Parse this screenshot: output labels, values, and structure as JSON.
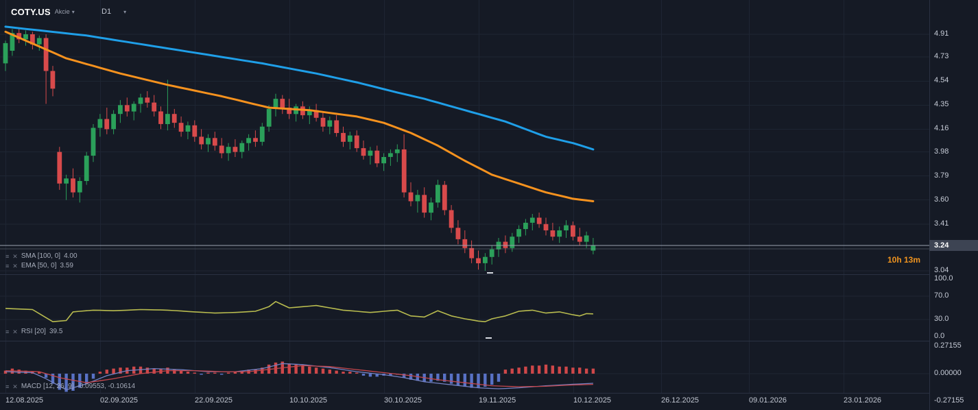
{
  "header": {
    "symbol": "COTY.US",
    "instrument_type": "Akcie",
    "timeframe": "D1"
  },
  "indicators": {
    "sma": {
      "label": "SMA [100, 0]",
      "value": "4.00"
    },
    "ema": {
      "label": "EMA [50, 0]",
      "value": "3.59"
    },
    "rsi": {
      "label": "RSI [20]",
      "value": "39.5"
    },
    "macd": {
      "label": "MACD [12, 26, 9]",
      "value": "-0.09553, -0.10614"
    }
  },
  "countdown": "10h 13m",
  "axis": {
    "price_labels": [
      "4.91",
      "4.73",
      "4.54",
      "4.35",
      "4.16",
      "3.98",
      "3.79",
      "3.60",
      "3.41",
      "3.04"
    ],
    "current_price": "3.24",
    "rsi_labels": [
      "100.0",
      "70.0",
      "30.0",
      "0.0"
    ],
    "macd_labels": [
      "0.27155",
      "0.00000",
      "-0.27155"
    ]
  },
  "dates": [
    "12.08.2025",
    "02.09.2025",
    "22.09.2025",
    "10.10.2025",
    "30.10.2025",
    "19.11.2025",
    "10.12.2025",
    "26.12.2025",
    "09.01.2026",
    "23.01.2026"
  ],
  "colors": {
    "background": "#151a25",
    "grid": "#1e2533",
    "separator": "#2a3142",
    "axis_text": "#c6cbd6",
    "candle_up": "#2ba05a",
    "candle_down": "#d84a4b",
    "sma_line": "#1f9fe8",
    "ema_line": "#f6921e",
    "rsi_line": "#b9bc4f",
    "macd_hist_up": "#d84a4b",
    "macd_hist_down": "#5c76ce",
    "macd_line": "#7482c4",
    "signal_line": "#c4474d",
    "price_line": "#9aa1b0",
    "badge_bg": "#3d4453",
    "countdown": "#f0941f"
  },
  "chart_data": {
    "type": "candlestick",
    "title": "COTY.US D1",
    "price_ylim": [
      3.04,
      4.91
    ],
    "price_line": 3.24,
    "ohlc": [
      [
        4.68,
        4.86,
        4.62,
        4.84
      ],
      [
        4.78,
        4.95,
        4.74,
        4.92
      ],
      [
        4.92,
        4.96,
        4.84,
        4.87
      ],
      [
        4.87,
        4.94,
        4.82,
        4.91
      ],
      [
        4.91,
        4.93,
        4.79,
        4.83
      ],
      [
        4.83,
        4.9,
        4.78,
        4.88
      ],
      [
        4.88,
        4.91,
        4.36,
        4.62
      ],
      [
        4.62,
        4.66,
        4.42,
        4.48
      ],
      [
        3.98,
        4.02,
        3.68,
        3.73
      ],
      [
        3.73,
        3.8,
        3.6,
        3.77
      ],
      [
        3.77,
        3.85,
        3.62,
        3.66
      ],
      [
        3.66,
        3.78,
        3.58,
        3.75
      ],
      [
        3.75,
        3.98,
        3.72,
        3.95
      ],
      [
        3.95,
        4.2,
        3.9,
        4.17
      ],
      [
        4.17,
        4.28,
        4.1,
        4.24
      ],
      [
        4.24,
        4.33,
        4.12,
        4.16
      ],
      [
        4.16,
        4.31,
        4.12,
        4.28
      ],
      [
        4.28,
        4.39,
        4.21,
        4.35
      ],
      [
        4.35,
        4.41,
        4.26,
        4.3
      ],
      [
        4.3,
        4.38,
        4.23,
        4.36
      ],
      [
        4.36,
        4.44,
        4.29,
        4.41
      ],
      [
        4.41,
        4.46,
        4.33,
        4.37
      ],
      [
        4.37,
        4.43,
        4.26,
        4.3
      ],
      [
        4.3,
        4.34,
        4.16,
        4.2
      ],
      [
        4.2,
        4.55,
        4.15,
        4.28
      ],
      [
        4.28,
        4.32,
        4.17,
        4.21
      ],
      [
        4.21,
        4.26,
        4.1,
        4.14
      ],
      [
        4.14,
        4.22,
        4.08,
        4.19
      ],
      [
        4.19,
        4.23,
        4.06,
        4.1
      ],
      [
        4.1,
        4.16,
        4.0,
        4.04
      ],
      [
        4.04,
        4.12,
        3.98,
        4.09
      ],
      [
        4.09,
        4.14,
        3.99,
        4.03
      ],
      [
        4.03,
        4.09,
        3.93,
        3.97
      ],
      [
        3.97,
        4.05,
        3.91,
        4.02
      ],
      [
        4.02,
        4.08,
        3.94,
        3.98
      ],
      [
        3.98,
        4.07,
        3.93,
        4.05
      ],
      [
        4.05,
        4.12,
        3.99,
        4.09
      ],
      [
        4.09,
        4.15,
        4.02,
        4.06
      ],
      [
        4.06,
        4.21,
        4.03,
        4.18
      ],
      [
        4.18,
        4.35,
        4.14,
        4.32
      ],
      [
        4.32,
        4.44,
        4.26,
        4.4
      ],
      [
        4.4,
        4.43,
        4.28,
        4.33
      ],
      [
        4.33,
        4.4,
        4.24,
        4.28
      ],
      [
        4.28,
        4.36,
        4.22,
        4.34
      ],
      [
        4.34,
        4.38,
        4.24,
        4.27
      ],
      [
        4.27,
        4.34,
        4.2,
        4.31
      ],
      [
        4.31,
        4.36,
        4.22,
        4.25
      ],
      [
        4.25,
        4.3,
        4.14,
        4.18
      ],
      [
        4.18,
        4.26,
        4.12,
        4.23
      ],
      [
        4.23,
        4.27,
        4.1,
        4.13
      ],
      [
        4.13,
        4.18,
        4.02,
        4.06
      ],
      [
        4.06,
        4.14,
        4.0,
        4.11
      ],
      [
        4.11,
        4.15,
        3.98,
        4.01
      ],
      [
        4.01,
        4.07,
        3.92,
        3.95
      ],
      [
        3.95,
        4.02,
        3.88,
        3.99
      ],
      [
        3.99,
        4.03,
        3.86,
        3.89
      ],
      [
        3.89,
        3.97,
        3.83,
        3.94
      ],
      [
        3.94,
        4.0,
        3.87,
        3.97
      ],
      [
        3.97,
        4.04,
        3.9,
        4.0
      ],
      [
        4.0,
        4.12,
        3.62,
        3.66
      ],
      [
        3.66,
        3.74,
        3.55,
        3.59
      ],
      [
        3.59,
        3.68,
        3.5,
        3.64
      ],
      [
        3.64,
        3.7,
        3.46,
        3.5
      ],
      [
        3.5,
        3.62,
        3.44,
        3.58
      ],
      [
        3.58,
        3.76,
        3.54,
        3.72
      ],
      [
        3.72,
        3.75,
        3.48,
        3.52
      ],
      [
        3.52,
        3.56,
        3.34,
        3.38
      ],
      [
        3.38,
        3.44,
        3.25,
        3.29
      ],
      [
        3.29,
        3.36,
        3.18,
        3.22
      ],
      [
        3.22,
        3.28,
        3.1,
        3.14
      ],
      [
        3.14,
        3.2,
        3.05,
        3.1
      ],
      [
        3.1,
        3.18,
        3.04,
        3.15
      ],
      [
        3.15,
        3.24,
        3.09,
        3.21
      ],
      [
        3.21,
        3.3,
        3.15,
        3.27
      ],
      [
        3.27,
        3.32,
        3.18,
        3.22
      ],
      [
        3.22,
        3.34,
        3.19,
        3.31
      ],
      [
        3.31,
        3.4,
        3.26,
        3.37
      ],
      [
        3.37,
        3.45,
        3.32,
        3.42
      ],
      [
        3.42,
        3.49,
        3.36,
        3.46
      ],
      [
        3.46,
        3.5,
        3.38,
        3.41
      ],
      [
        3.41,
        3.46,
        3.32,
        3.36
      ],
      [
        3.36,
        3.42,
        3.28,
        3.31
      ],
      [
        3.31,
        3.39,
        3.26,
        3.36
      ],
      [
        3.36,
        3.44,
        3.3,
        3.4
      ],
      [
        3.4,
        3.43,
        3.28,
        3.31
      ],
      [
        3.31,
        3.38,
        3.24,
        3.27
      ],
      [
        3.27,
        3.35,
        3.22,
        3.32
      ],
      [
        3.2,
        3.3,
        3.17,
        3.24
      ]
    ],
    "overlays": [
      {
        "name": "SMA 100",
        "last": 4.0,
        "points": [
          [
            0,
            4.97
          ],
          [
            12,
            4.9
          ],
          [
            25,
            4.79
          ],
          [
            38,
            4.68
          ],
          [
            46,
            4.6
          ],
          [
            52,
            4.53
          ],
          [
            58,
            4.45
          ],
          [
            62,
            4.4
          ],
          [
            68,
            4.31
          ],
          [
            74,
            4.22
          ],
          [
            80,
            4.1
          ],
          [
            84,
            4.05
          ],
          [
            87,
            4.0
          ]
        ]
      },
      {
        "name": "EMA 50",
        "last": 3.59,
        "points": [
          [
            0,
            4.93
          ],
          [
            9,
            4.72
          ],
          [
            17,
            4.6
          ],
          [
            24,
            4.51
          ],
          [
            32,
            4.42
          ],
          [
            39,
            4.33
          ],
          [
            45,
            4.31
          ],
          [
            52,
            4.26
          ],
          [
            56,
            4.21
          ],
          [
            60,
            4.13
          ],
          [
            64,
            4.03
          ],
          [
            68,
            3.91
          ],
          [
            72,
            3.8
          ],
          [
            76,
            3.73
          ],
          [
            80,
            3.66
          ],
          [
            84,
            3.61
          ],
          [
            87,
            3.59
          ]
        ]
      }
    ],
    "rsi": {
      "period": 20,
      "last": 39.5,
      "ylim": [
        0,
        100
      ],
      "points": [
        [
          0,
          49
        ],
        [
          4,
          47
        ],
        [
          6,
          33
        ],
        [
          7,
          26
        ],
        [
          9,
          28
        ],
        [
          10,
          43
        ],
        [
          13,
          46
        ],
        [
          16,
          45
        ],
        [
          20,
          47
        ],
        [
          24,
          46
        ],
        [
          28,
          43
        ],
        [
          31,
          41
        ],
        [
          34,
          42
        ],
        [
          37,
          44
        ],
        [
          39,
          52
        ],
        [
          40,
          61
        ],
        [
          42,
          50
        ],
        [
          44,
          52
        ],
        [
          46,
          54
        ],
        [
          48,
          50
        ],
        [
          50,
          46
        ],
        [
          52,
          44
        ],
        [
          54,
          42
        ],
        [
          56,
          44
        ],
        [
          58,
          46
        ],
        [
          60,
          36
        ],
        [
          62,
          34
        ],
        [
          64,
          45
        ],
        [
          66,
          36
        ],
        [
          68,
          31
        ],
        [
          70,
          27
        ],
        [
          71,
          26
        ],
        [
          72,
          31
        ],
        [
          74,
          36
        ],
        [
          76,
          44
        ],
        [
          78,
          46
        ],
        [
          80,
          41
        ],
        [
          82,
          43
        ],
        [
          84,
          38
        ],
        [
          85,
          36
        ],
        [
          86,
          40
        ],
        [
          87,
          39.5
        ]
      ]
    },
    "macd": {
      "params": [
        12,
        26,
        9
      ],
      "last_macd": -0.09553,
      "last_signal": -0.10614,
      "ylim": [
        -0.27155,
        0.27155
      ],
      "histogram": [
        0.03,
        0.05,
        0.04,
        0.03,
        0.02,
        0.02,
        -0.04,
        -0.1,
        -0.16,
        -0.18,
        -0.17,
        -0.14,
        -0.1,
        -0.05,
        0.02,
        0.04,
        0.05,
        0.06,
        0.06,
        0.07,
        0.07,
        0.06,
        0.05,
        0.05,
        0.06,
        0.04,
        0.03,
        0.02,
        0.01,
        -0.01,
        0.01,
        0.01,
        -0.01,
        0.01,
        0.02,
        0.03,
        0.04,
        0.04,
        0.06,
        0.09,
        0.11,
        0.12,
        0.1,
        0.09,
        0.08,
        0.07,
        0.06,
        0.05,
        0.04,
        0.03,
        0.02,
        0.02,
        0.01,
        -0.02,
        -0.03,
        -0.03,
        -0.02,
        -0.02,
        -0.01,
        -0.04,
        -0.06,
        -0.07,
        -0.08,
        -0.08,
        -0.07,
        -0.08,
        -0.1,
        -0.12,
        -0.13,
        -0.14,
        -0.14,
        -0.13,
        -0.11,
        -0.08,
        0.04,
        0.05,
        0.06,
        0.07,
        0.08,
        0.08,
        0.09,
        0.08,
        0.07,
        0.07,
        0.06,
        0.06,
        0.05,
        0.05
      ],
      "macd_points": [
        [
          0,
          0.02
        ],
        [
          4,
          0.01
        ],
        [
          6,
          -0.05
        ],
        [
          9,
          -0.16
        ],
        [
          12,
          -0.1
        ],
        [
          15,
          -0.02
        ],
        [
          18,
          0.03
        ],
        [
          22,
          0.05
        ],
        [
          26,
          0.04
        ],
        [
          30,
          0.02
        ],
        [
          34,
          0.02
        ],
        [
          38,
          0.05
        ],
        [
          41,
          0.1
        ],
        [
          44,
          0.09
        ],
        [
          48,
          0.06
        ],
        [
          52,
          0.02
        ],
        [
          56,
          -0.01
        ],
        [
          59,
          -0.04
        ],
        [
          62,
          -0.08
        ],
        [
          66,
          -0.11
        ],
        [
          70,
          -0.14
        ],
        [
          73,
          -0.15
        ],
        [
          76,
          -0.14
        ],
        [
          80,
          -0.12
        ],
        [
          84,
          -0.105
        ],
        [
          87,
          -0.09553
        ]
      ],
      "signal_points": [
        [
          0,
          0.03
        ],
        [
          5,
          0.02
        ],
        [
          8,
          -0.04
        ],
        [
          12,
          -0.09
        ],
        [
          16,
          -0.05
        ],
        [
          20,
          0.0
        ],
        [
          24,
          0.03
        ],
        [
          28,
          0.03
        ],
        [
          32,
          0.02
        ],
        [
          36,
          0.02
        ],
        [
          40,
          0.05
        ],
        [
          44,
          0.08
        ],
        [
          48,
          0.07
        ],
        [
          52,
          0.04
        ],
        [
          56,
          0.01
        ],
        [
          60,
          -0.02
        ],
        [
          64,
          -0.06
        ],
        [
          68,
          -0.09
        ],
        [
          72,
          -0.12
        ],
        [
          76,
          -0.13
        ],
        [
          80,
          -0.125
        ],
        [
          84,
          -0.112
        ],
        [
          87,
          -0.10614
        ]
      ]
    }
  }
}
